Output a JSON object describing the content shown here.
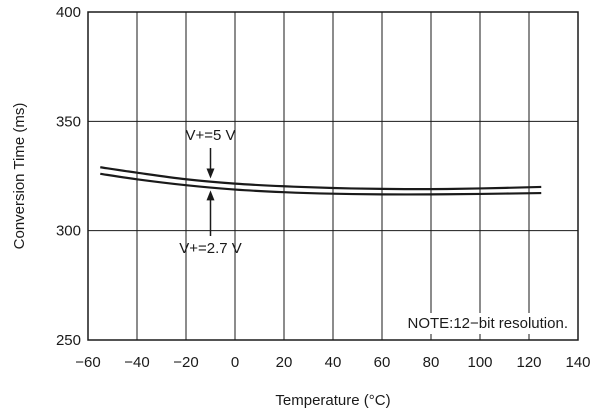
{
  "chart_data": {
    "type": "line",
    "xlabel": "Temperature (°C)",
    "ylabel": "Conversion Time (ms)",
    "xlim": [
      -60,
      140
    ],
    "ylim": [
      250,
      400
    ],
    "x_ticks": [
      -60,
      -40,
      -20,
      0,
      20,
      40,
      60,
      80,
      100,
      120,
      140
    ],
    "x_tick_labels": [
      "−60",
      "−40",
      "−20",
      "0",
      "20",
      "40",
      "60",
      "80",
      "100",
      "120",
      "140"
    ],
    "y_ticks": [
      250,
      300,
      350,
      400
    ],
    "y_tick_labels": [
      "250",
      "300",
      "350",
      "400"
    ],
    "grid": true,
    "series": [
      {
        "name": "V+=5 V",
        "x": [
          -55,
          -40,
          -20,
          0,
          20,
          40,
          60,
          80,
          100,
          125
        ],
        "values": [
          329,
          326.5,
          323.5,
          321.5,
          320.3,
          319.5,
          319.1,
          319,
          319.3,
          320
        ]
      },
      {
        "name": "V+=2.7 V",
        "x": [
          -55,
          -40,
          -20,
          0,
          20,
          40,
          60,
          80,
          100,
          125
        ],
        "values": [
          326,
          323.5,
          320.8,
          318.8,
          317.6,
          316.9,
          316.6,
          316.6,
          316.8,
          317.2
        ]
      }
    ],
    "annotations": [
      {
        "text": "V+=5 V",
        "points_to_series": 0,
        "x": -10
      },
      {
        "text": "V+=2.7 V",
        "points_to_series": 1,
        "x": -10
      },
      {
        "text": "NOTE:12−bit resolution."
      }
    ]
  }
}
